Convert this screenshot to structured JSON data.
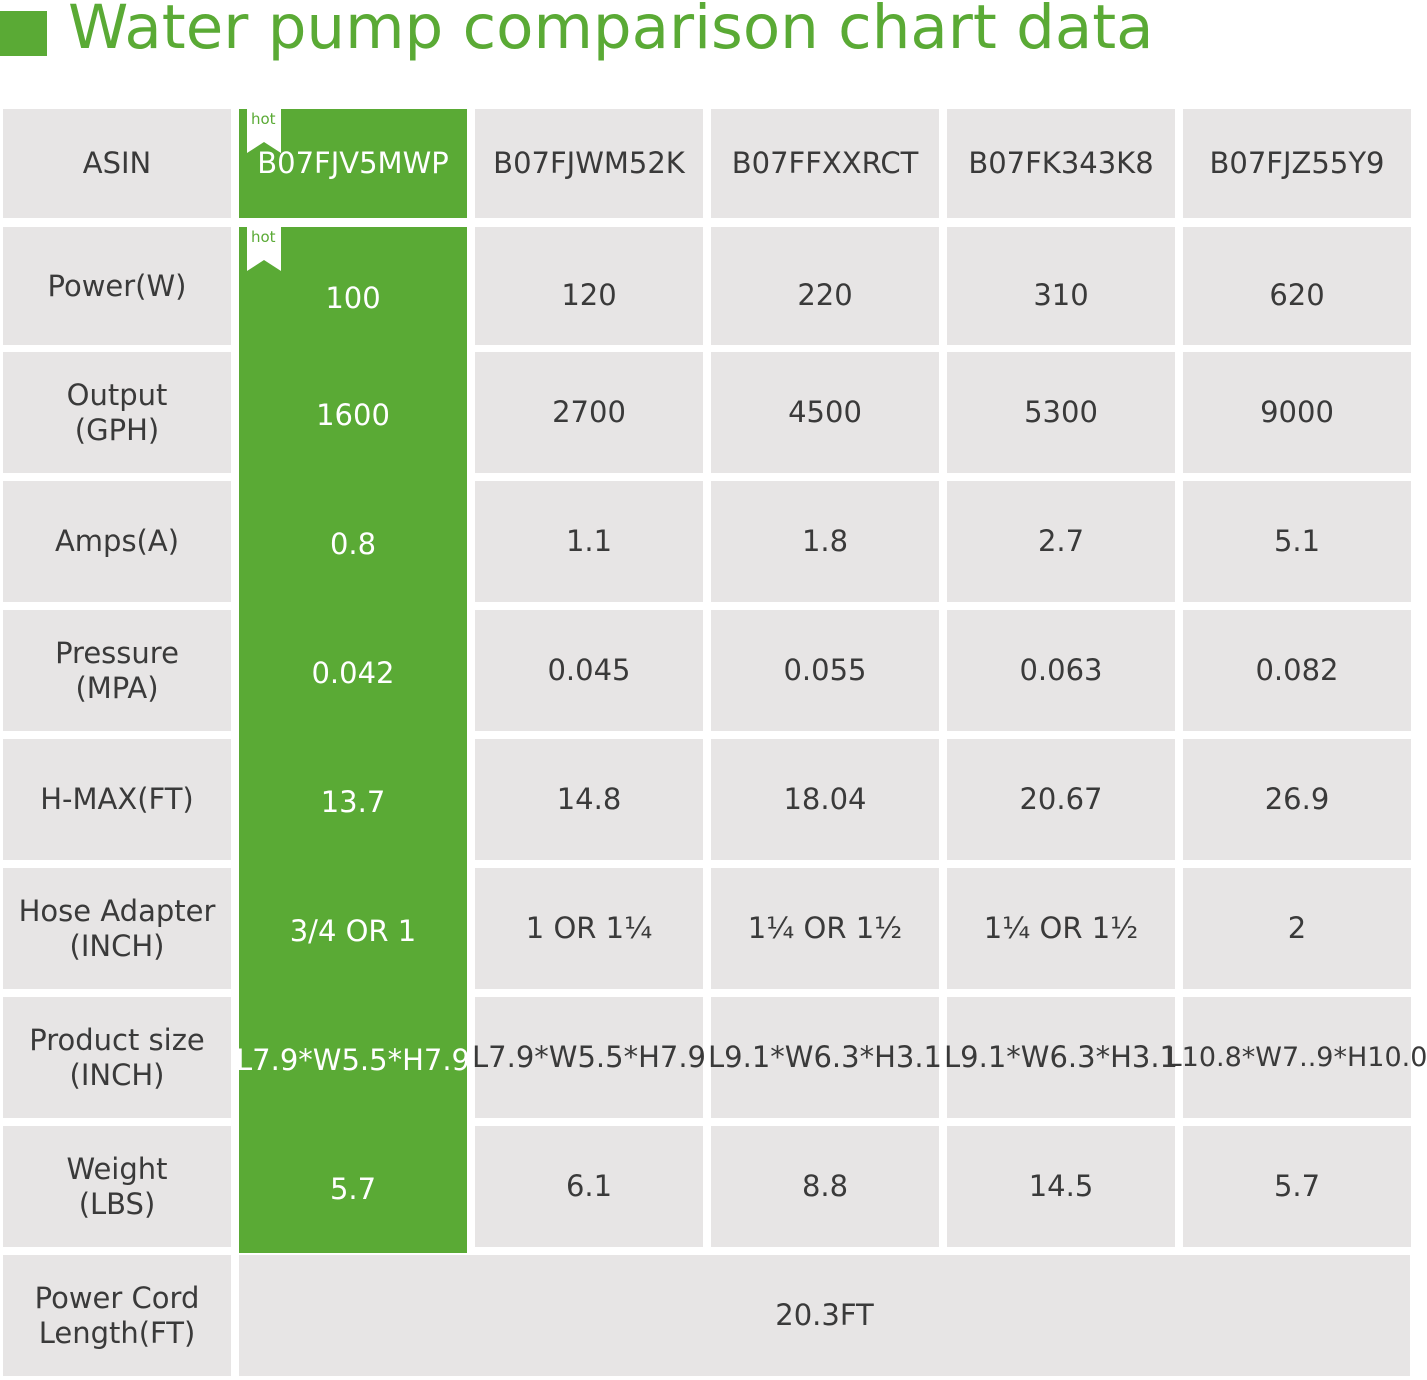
{
  "title": "Water pump comparison chart data",
  "badge": "hot",
  "colors": {
    "accent": "#5aaa35",
    "cell_bg": "#e7e5e5",
    "text": "#3a3a3a",
    "highlight_text": "#ffffff"
  },
  "table": {
    "header_label": "ASIN",
    "columns": [
      "B07FJV5MWP",
      "B07FJWM52K",
      "B07FFXXRCT",
      "B07FK343K8",
      "B07FJZ55Y9"
    ],
    "highlight_column": 0,
    "rows": [
      {
        "label": "Power(W)",
        "values": [
          "100",
          "120",
          "220",
          "310",
          "620"
        ]
      },
      {
        "label": "Output\n(GPH)",
        "values": [
          "1600",
          "2700",
          "4500",
          "5300",
          "9000"
        ]
      },
      {
        "label": "Amps(A)",
        "values": [
          "0.8",
          "1.1",
          "1.8",
          "2.7",
          "5.1"
        ]
      },
      {
        "label": "Pressure\n(MPA)",
        "values": [
          "0.042",
          "0.045",
          "0.055",
          "0.063",
          "0.082"
        ]
      },
      {
        "label": "H-MAX(FT)",
        "values": [
          "13.7",
          "14.8",
          "18.04",
          "20.67",
          "26.9"
        ]
      },
      {
        "label": "Hose Adapter\n(INCH)",
        "values": [
          "3/4 OR 1",
          "1 OR 1¼",
          "1¼ OR 1½",
          "1¼ OR 1½",
          "2"
        ]
      },
      {
        "label": "Product size\n(INCH)",
        "values": [
          "L7.9*W5.5*H7.9",
          "L7.9*W5.5*H7.9",
          "L9.1*W6.3*H3.1",
          "L9.1*W6.3*H3.1",
          "L10.8*W7..9*H10.0"
        ]
      },
      {
        "label": "Weight\n(LBS)",
        "values": [
          "5.7",
          "6.1",
          "8.8",
          "14.5",
          "5.7"
        ]
      }
    ],
    "footer": {
      "label": "Power Cord\nLength(FT)",
      "value": "20.3FT"
    }
  },
  "chart_data": {
    "type": "table",
    "title": "Water pump comparison chart data",
    "columns": [
      "ASIN",
      "B07FJV5MWP",
      "B07FJWM52K",
      "B07FFXXRCT",
      "B07FK343K8",
      "B07FJZ55Y9"
    ],
    "rows": [
      [
        "Power(W)",
        "100",
        "120",
        "220",
        "310",
        "620"
      ],
      [
        "Output (GPH)",
        "1600",
        "2700",
        "4500",
        "5300",
        "9000"
      ],
      [
        "Amps(A)",
        "0.8",
        "1.1",
        "1.8",
        "2.7",
        "5.1"
      ],
      [
        "Pressure (MPA)",
        "0.042",
        "0.045",
        "0.055",
        "0.063",
        "0.082"
      ],
      [
        "H-MAX(FT)",
        "13.7",
        "14.8",
        "18.04",
        "20.67",
        "26.9"
      ],
      [
        "Hose Adapter (INCH)",
        "3/4 OR 1",
        "1 OR 1¼",
        "1¼ OR 1½",
        "1¼ OR 1½",
        "2"
      ],
      [
        "Product size (INCH)",
        "L7.9*W5.5*H7.9",
        "L7.9*W5.5*H7.9",
        "L9.1*W6.3*H3.1",
        "L9.1*W6.3*H3.1",
        "L10.8*W7..9*H10.0"
      ],
      [
        "Weight (LBS)",
        "5.7",
        "6.1",
        "8.8",
        "14.5",
        "5.7"
      ],
      [
        "Power Cord Length(FT)",
        "20.3FT"
      ]
    ]
  }
}
